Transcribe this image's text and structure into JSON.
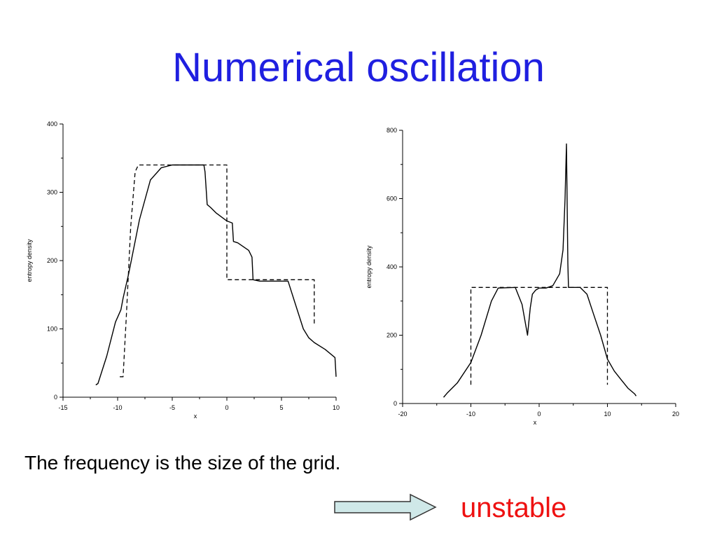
{
  "slide": {
    "title": "Numerical oscillation",
    "caption": "The frequency is the size of the grid.",
    "result_word": "unstable",
    "title_color": "#1f1fe0",
    "result_color": "#ee1111",
    "arrow_fill": "#cfe8e8"
  },
  "chart_data": [
    {
      "type": "line",
      "xlabel": "x",
      "ylabel": "entropy density",
      "xlim": [
        -15,
        10
      ],
      "ylim": [
        0,
        400
      ],
      "xticks": [
        -15,
        -10,
        -5,
        0,
        5,
        10
      ],
      "yticks": [
        0,
        100,
        200,
        300,
        400
      ],
      "grid": false,
      "series": [
        {
          "style": "solid",
          "points": [
            [
              -12,
              18
            ],
            [
              -11.8,
              20
            ],
            [
              -11,
              60
            ],
            [
              -10.2,
              110
            ],
            [
              -9.7,
              128
            ],
            [
              -9.5,
              145
            ],
            [
              -9,
              180
            ],
            [
              -8,
              260
            ],
            [
              -7,
              318
            ],
            [
              -6,
              336
            ],
            [
              -5,
              340
            ],
            [
              -3,
              340
            ],
            [
              -2.1,
              340
            ],
            [
              -2,
              330
            ],
            [
              -1.8,
              282
            ],
            [
              -1.5,
              278
            ],
            [
              -1,
              270
            ],
            [
              0,
              258
            ],
            [
              0.5,
              255
            ],
            [
              0.6,
              228
            ],
            [
              1,
              226
            ],
            [
              2,
              215
            ],
            [
              2.3,
              205
            ],
            [
              2.4,
              172
            ],
            [
              3,
              170
            ],
            [
              5,
              170
            ],
            [
              5.6,
              170
            ],
            [
              6.2,
              140
            ],
            [
              7,
              100
            ],
            [
              7.5,
              87
            ],
            [
              8,
              80
            ],
            [
              9,
              70
            ],
            [
              9.9,
              58
            ],
            [
              10,
              30
            ]
          ]
        },
        {
          "style": "dashed",
          "points": [
            [
              -9.8,
              30
            ],
            [
              -9.5,
              30
            ],
            [
              -9.2,
              120
            ],
            [
              -8.8,
              250
            ],
            [
              -8.4,
              330
            ],
            [
              -8.1,
              340
            ],
            [
              0,
              340
            ],
            [
              0,
              172
            ],
            [
              8,
              172
            ],
            [
              8,
              105
            ]
          ]
        }
      ]
    },
    {
      "type": "line",
      "xlabel": "x",
      "ylabel": "entropy density",
      "xlim": [
        -20,
        20
      ],
      "ylim": [
        0,
        800
      ],
      "xticks": [
        -20,
        -10,
        0,
        10,
        20
      ],
      "yticks": [
        0,
        200,
        400,
        600,
        800
      ],
      "grid": false,
      "series": [
        {
          "style": "solid",
          "points": [
            [
              -14,
              18
            ],
            [
              -13.5,
              30
            ],
            [
              -12,
              60
            ],
            [
              -10,
              120
            ],
            [
              -8.5,
              200
            ],
            [
              -7,
              300
            ],
            [
              -6,
              338
            ],
            [
              -3.5,
              340
            ],
            [
              -2.5,
              290
            ],
            [
              -1.7,
              200
            ],
            [
              -1.3,
              280
            ],
            [
              -1,
              320
            ],
            [
              -0.5,
              332
            ],
            [
              0,
              338
            ],
            [
              1,
              338
            ],
            [
              2,
              345
            ],
            [
              3,
              380
            ],
            [
              3.5,
              450
            ],
            [
              3.8,
              600
            ],
            [
              4,
              760
            ],
            [
              4.2,
              410
            ],
            [
              4.3,
              340
            ],
            [
              6,
              340
            ],
            [
              7,
              320
            ],
            [
              8,
              260
            ],
            [
              9,
              200
            ],
            [
              10,
              130
            ],
            [
              11,
              95
            ],
            [
              12,
              70
            ],
            [
              13,
              45
            ],
            [
              14,
              28
            ],
            [
              14.2,
              22
            ]
          ]
        },
        {
          "style": "dashed",
          "points": [
            [
              -10,
              55
            ],
            [
              -10,
              340
            ],
            [
              10,
              340
            ],
            [
              10,
              55
            ]
          ]
        }
      ]
    }
  ]
}
